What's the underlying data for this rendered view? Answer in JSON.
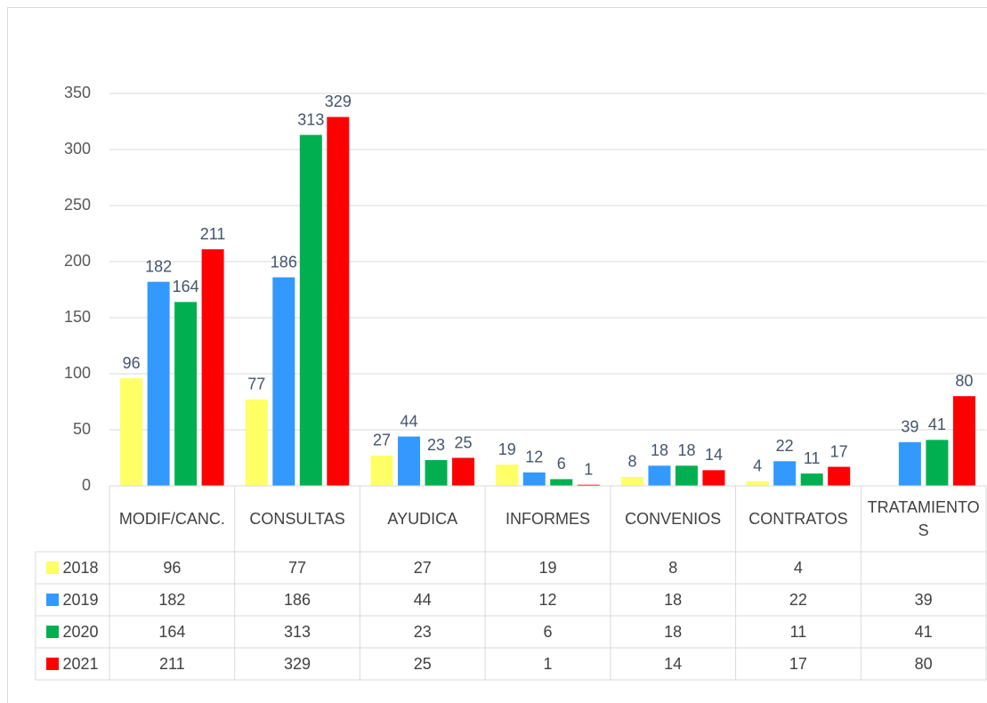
{
  "chart_data": {
    "type": "bar",
    "categories": [
      "MODIF/CANC.",
      "CONSULTAS",
      "AYUDICA",
      "INFORMES",
      "CONVENIOS",
      "CONTRATOS",
      "TRATAMIENTOS"
    ],
    "series": [
      {
        "name": "2018",
        "color": "#ffff66",
        "values": [
          96,
          77,
          27,
          19,
          8,
          4,
          null
        ]
      },
      {
        "name": "2019",
        "color": "#3399ff",
        "values": [
          182,
          186,
          44,
          12,
          18,
          22,
          39
        ]
      },
      {
        "name": "2020",
        "color": "#00b050",
        "values": [
          164,
          313,
          23,
          6,
          18,
          11,
          41
        ]
      },
      {
        "name": "2021",
        "color": "#ff0000",
        "values": [
          211,
          329,
          25,
          1,
          14,
          17,
          80
        ]
      }
    ],
    "ylim": [
      0,
      350
    ],
    "yticks": [
      0,
      50,
      100,
      150,
      200,
      250,
      300,
      350
    ],
    "grid": true,
    "data_table": true
  }
}
